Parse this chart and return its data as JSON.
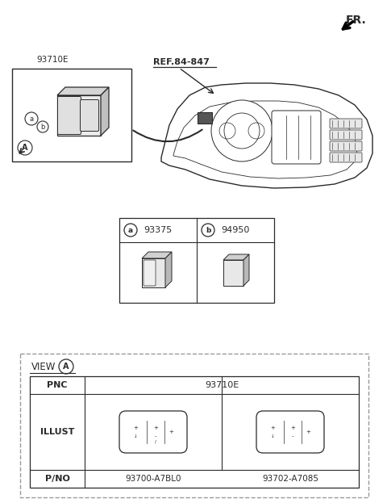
{
  "bg_color": "#ffffff",
  "line_color": "#2a2a2a",
  "dashed_color": "#999999",
  "fr_label": "FR.",
  "ref_label": "REF.84-847",
  "part_93710E": "93710E",
  "part_a": "a",
  "part_b": "b",
  "label_A": "A",
  "label_a_pnc": "a",
  "label_b_pnc": "b",
  "pnc_93375": "93375",
  "pnc_94950": "94950",
  "view_label": "VIEW",
  "view_circle": "A",
  "pnc_label": "PNC",
  "pnc_value": "93710E",
  "illust_label": "ILLUST",
  "pno_label": "P/NO",
  "pno_1": "93700-A7BL0",
  "pno_2": "93702-A7085"
}
